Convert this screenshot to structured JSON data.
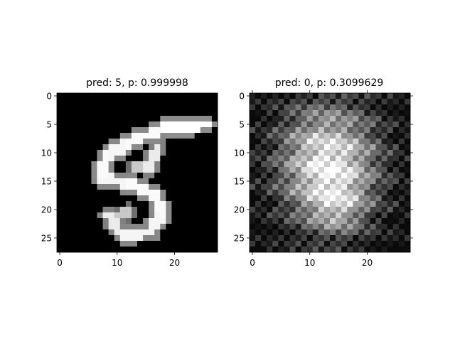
{
  "chart_data": [
    {
      "type": "heatmap",
      "title": "pred: 5, p: 0.999998",
      "colormap": "gray",
      "shape": [
        28,
        28
      ],
      "xlim": [
        -0.5,
        27.5
      ],
      "ylim": [
        27.5,
        -0.5
      ],
      "xticks": [
        0,
        10,
        20
      ],
      "yticks": [
        0,
        5,
        10,
        15,
        20,
        25
      ],
      "grid": false
    },
    {
      "type": "heatmap",
      "title": "pred: 0, p: 0.3099629",
      "colormap": "gray",
      "shape": [
        28,
        28
      ],
      "xlim": [
        -0.5,
        27.5
      ],
      "ylim": [
        27.5,
        -0.5
      ],
      "xticks": [
        0,
        10,
        20
      ],
      "yticks": [
        0,
        5,
        10,
        15,
        20,
        25
      ],
      "grid": false
    }
  ]
}
